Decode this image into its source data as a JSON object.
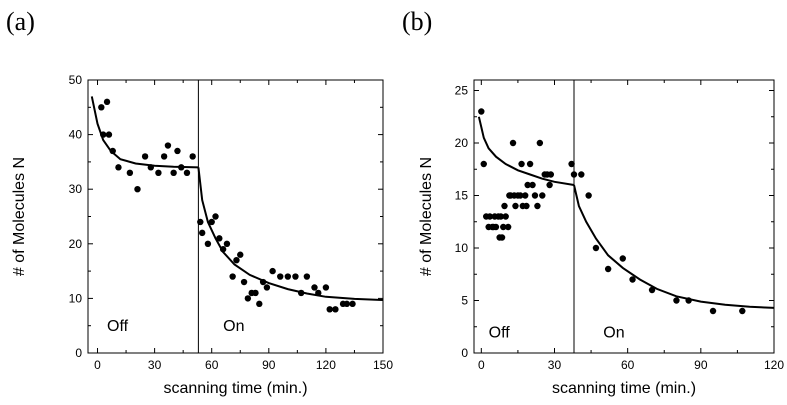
{
  "chart_data": [
    {
      "type": "scatter",
      "panel_label": "(a)",
      "xlabel": "scanning time (min.)",
      "ylabel": "# of Molecules N",
      "xlim": [
        -5,
        150
      ],
      "ylim": [
        0,
        50
      ],
      "xticks": [
        0,
        30,
        60,
        90,
        120,
        150
      ],
      "yticks": [
        0,
        10,
        20,
        30,
        40,
        50
      ],
      "vline_x": 53,
      "annotations": [
        {
          "text": "Off",
          "x": 5,
          "y": 4
        },
        {
          "text": "On",
          "x": 66,
          "y": 4
        }
      ],
      "points": [
        [
          2,
          45
        ],
        [
          5,
          46
        ],
        [
          3,
          40
        ],
        [
          6,
          40
        ],
        [
          8,
          37
        ],
        [
          11,
          34
        ],
        [
          17,
          33
        ],
        [
          21,
          30
        ],
        [
          25,
          36
        ],
        [
          28,
          34
        ],
        [
          32,
          33
        ],
        [
          35,
          36
        ],
        [
          37,
          38
        ],
        [
          40,
          33
        ],
        [
          42,
          37
        ],
        [
          44,
          34
        ],
        [
          47,
          33
        ],
        [
          50,
          36
        ],
        [
          54,
          24
        ],
        [
          55,
          22
        ],
        [
          58,
          20
        ],
        [
          60,
          24
        ],
        [
          62,
          25
        ],
        [
          64,
          21
        ],
        [
          66,
          19
        ],
        [
          68,
          20
        ],
        [
          71,
          14
        ],
        [
          73,
          17
        ],
        [
          75,
          18
        ],
        [
          77,
          13
        ],
        [
          79,
          10
        ],
        [
          81,
          11
        ],
        [
          83,
          11
        ],
        [
          85,
          9
        ],
        [
          87,
          13
        ],
        [
          89,
          12
        ],
        [
          92,
          15
        ],
        [
          96,
          14
        ],
        [
          100,
          14
        ],
        [
          104,
          14
        ],
        [
          107,
          11
        ],
        [
          110,
          14
        ],
        [
          114,
          12
        ],
        [
          116,
          11
        ],
        [
          120,
          12
        ],
        [
          122,
          8
        ],
        [
          125,
          8
        ],
        [
          129,
          9
        ],
        [
          131,
          9
        ],
        [
          134,
          9
        ]
      ],
      "fit_segments": [
        [
          [
            -3,
            47
          ],
          [
            0,
            42
          ],
          [
            3,
            39
          ],
          [
            7,
            37
          ],
          [
            12,
            35.5
          ],
          [
            20,
            34.7
          ],
          [
            30,
            34.3
          ],
          [
            40,
            34.1
          ],
          [
            53,
            34
          ]
        ],
        [
          [
            53,
            34
          ],
          [
            55,
            28
          ],
          [
            58,
            24
          ],
          [
            62,
            21
          ],
          [
            66,
            18.5
          ],
          [
            72,
            16.2
          ],
          [
            80,
            14.3
          ],
          [
            90,
            12.8
          ],
          [
            100,
            11.7
          ],
          [
            110,
            10.9
          ],
          [
            120,
            10.3
          ],
          [
            135,
            9.9
          ],
          [
            150,
            9.7
          ]
        ]
      ]
    },
    {
      "type": "scatter",
      "panel_label": "(b)",
      "xlabel": "scanning time (min.)",
      "ylabel": "# of Molecules N",
      "xlim": [
        -3,
        120
      ],
      "ylim": [
        0,
        26
      ],
      "xticks": [
        0,
        30,
        60,
        90,
        120
      ],
      "yticks": [
        0,
        5,
        10,
        15,
        20,
        25
      ],
      "vline_x": 38,
      "annotations": [
        {
          "text": "Off",
          "x": 3,
          "y": 1.5
        },
        {
          "text": "On",
          "x": 50,
          "y": 1.5
        }
      ],
      "points": [
        [
          0,
          23
        ],
        [
          1,
          18
        ],
        [
          2,
          13
        ],
        [
          3,
          12
        ],
        [
          3.5,
          13
        ],
        [
          4.5,
          12
        ],
        [
          5,
          12
        ],
        [
          5.5,
          13
        ],
        [
          6,
          12
        ],
        [
          7,
          13
        ],
        [
          7.5,
          11
        ],
        [
          8,
          13
        ],
        [
          8.5,
          11
        ],
        [
          9,
          12
        ],
        [
          9.5,
          14
        ],
        [
          10,
          13
        ],
        [
          11,
          12
        ],
        [
          11.5,
          15
        ],
        [
          12,
          15
        ],
        [
          13,
          20
        ],
        [
          13.5,
          15
        ],
        [
          14,
          14
        ],
        [
          15,
          15
        ],
        [
          16,
          15
        ],
        [
          16.5,
          18
        ],
        [
          17,
          14
        ],
        [
          18,
          15
        ],
        [
          18.5,
          14
        ],
        [
          19,
          16
        ],
        [
          20,
          18
        ],
        [
          21,
          16
        ],
        [
          22,
          15
        ],
        [
          23,
          14
        ],
        [
          24,
          20
        ],
        [
          25,
          15
        ],
        [
          26,
          17
        ],
        [
          27,
          17
        ],
        [
          28,
          16
        ],
        [
          28.5,
          17
        ],
        [
          37,
          18
        ],
        [
          38,
          17
        ],
        [
          41,
          17
        ],
        [
          44,
          15
        ],
        [
          47,
          10
        ],
        [
          52,
          8
        ],
        [
          58,
          9
        ],
        [
          62,
          7
        ],
        [
          70,
          6
        ],
        [
          80,
          5
        ],
        [
          85,
          5
        ],
        [
          95,
          4
        ],
        [
          107,
          4
        ]
      ],
      "fit_segments": [
        [
          [
            -1,
            22.5
          ],
          [
            1,
            20.5
          ],
          [
            3,
            19.5
          ],
          [
            6,
            18.7
          ],
          [
            10,
            18
          ],
          [
            15,
            17.4
          ],
          [
            20,
            17
          ],
          [
            25,
            16.6
          ],
          [
            30,
            16.3
          ],
          [
            38,
            16
          ]
        ],
        [
          [
            38,
            16
          ],
          [
            40,
            14
          ],
          [
            43,
            12.5
          ],
          [
            47,
            10.9
          ],
          [
            52,
            9.3
          ],
          [
            58,
            8.1
          ],
          [
            65,
            7
          ],
          [
            72,
            6.1
          ],
          [
            80,
            5.4
          ],
          [
            90,
            4.9
          ],
          [
            100,
            4.6
          ],
          [
            110,
            4.4
          ],
          [
            120,
            4.3
          ]
        ]
      ]
    }
  ]
}
